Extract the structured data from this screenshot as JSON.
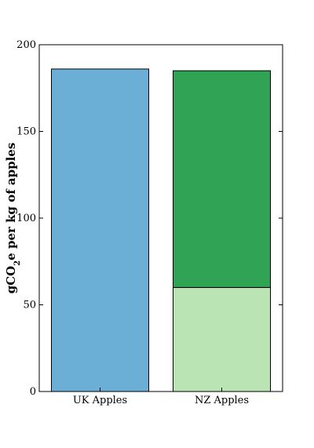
{
  "chart_data": {
    "type": "bar",
    "stacked": true,
    "categories": [
      "UK Apples",
      "NZ Apples"
    ],
    "series": [
      {
        "values": [
          186,
          60
        ],
        "colors": [
          "#6baed6",
          "#bae4b3"
        ]
      },
      {
        "values": [
          0,
          125
        ],
        "colors": [
          null,
          "#31a354"
        ]
      }
    ],
    "ylabel": {
      "before": "gCO",
      "subscript": "2",
      "after": "e per kg of apples"
    },
    "ylim": [
      0,
      200
    ],
    "yticks": [
      0,
      50,
      100,
      150,
      200
    ],
    "grid": false,
    "legend": "none"
  }
}
